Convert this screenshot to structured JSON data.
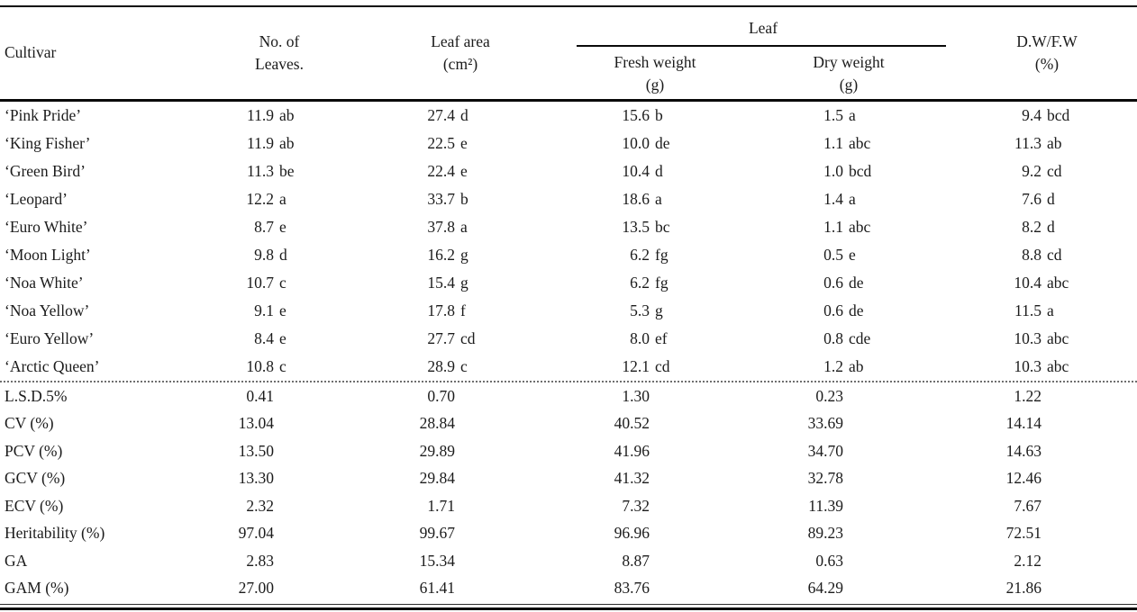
{
  "table": {
    "columns": {
      "cultivar": "Cultivar",
      "no_of_leaves": "No. of\nLeaves.",
      "leaf_area": "Leaf area\n(cm²)",
      "leaf_group": "Leaf",
      "fresh_weight": "Fresh weight\n(g)",
      "dry_weight": "Dry weight\n(g)",
      "dw_fw": "D.W/F.W\n(%)"
    },
    "cultivar_rows": [
      {
        "label": "‘Pink Pride’",
        "values": [
          "11.9 ab",
          "27.4 d",
          "15.6 b",
          "1.5 a",
          "9.4 bcd"
        ]
      },
      {
        "label": "‘King Fisher’",
        "values": [
          "11.9 ab",
          "22.5 e",
          "10.0 de",
          "1.1 abc",
          "11.3 ab"
        ]
      },
      {
        "label": "‘Green Bird’",
        "values": [
          "11.3 be",
          "22.4 e",
          "10.4 d",
          "1.0 bcd",
          "9.2 cd"
        ]
      },
      {
        "label": "‘Leopard’",
        "values": [
          "12.2 a",
          "33.7 b",
          "18.6 a",
          "1.4 a",
          "7.6 d"
        ]
      },
      {
        "label": "‘Euro White’",
        "values": [
          "8.7 e",
          "37.8 a",
          "13.5 bc",
          "1.1 abc",
          "8.2 d"
        ]
      },
      {
        "label": "‘Moon Light’",
        "values": [
          "9.8 d",
          "16.2 g",
          "6.2 fg",
          "0.5 e",
          "8.8 cd"
        ]
      },
      {
        "label": "‘Noa White’",
        "values": [
          "10.7 c",
          "15.4 g",
          "6.2 fg",
          "0.6 de",
          "10.4 abc"
        ]
      },
      {
        "label": "‘Noa Yellow’",
        "values": [
          "9.1 e",
          "17.8 f",
          "5.3 g",
          "0.6 de",
          "11.5 a"
        ]
      },
      {
        "label": "‘Euro Yellow’",
        "values": [
          "8.4 e",
          "27.7 cd",
          "8.0 ef",
          "0.8 cde",
          "10.3 abc"
        ]
      },
      {
        "label": "‘Arctic Queen’",
        "values": [
          "10.8 c",
          "28.9 c",
          "12.1 cd",
          "1.2 ab",
          "10.3 abc"
        ]
      }
    ],
    "stat_rows": [
      {
        "label": "L.S.D.5%",
        "values": [
          "0.41",
          "0.70",
          "1.30",
          "0.23",
          "1.22"
        ]
      },
      {
        "label": "CV (%)",
        "values": [
          "13.04",
          "28.84",
          "40.52",
          "33.69",
          "14.14"
        ]
      },
      {
        "label": "PCV (%)",
        "values": [
          "13.50",
          "29.89",
          "41.96",
          "34.70",
          "14.63"
        ]
      },
      {
        "label": "GCV (%)",
        "values": [
          "13.30",
          "29.84",
          "41.32",
          "32.78",
          "12.46"
        ]
      },
      {
        "label": "ECV (%)",
        "values": [
          "2.32",
          "1.71",
          "7.32",
          "11.39",
          "7.67"
        ]
      },
      {
        "label": "Heritability (%)",
        "values": [
          "97.04",
          "99.67",
          "96.96",
          "89.23",
          "72.51"
        ]
      },
      {
        "label": "GA",
        "values": [
          "2.83",
          "15.34",
          "8.87",
          "0.63",
          "2.12"
        ]
      },
      {
        "label": "GAM (%)",
        "values": [
          "27.00",
          "61.41",
          "83.76",
          "64.29",
          "21.86"
        ]
      }
    ]
  }
}
